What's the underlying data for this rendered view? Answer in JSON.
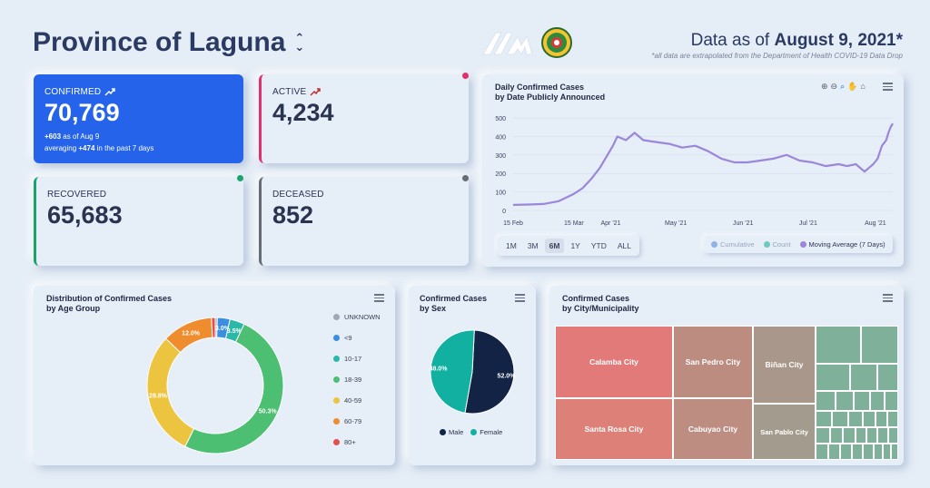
{
  "header": {
    "title": "Province of Laguna",
    "data_as_of_prefix": "Data as of ",
    "data_as_of_date": "August 9, 2021*",
    "note": "*all data are extrapolated from the Department of Health COVID-19 Data Drop"
  },
  "kpis": {
    "confirmed": {
      "label": "Confirmed",
      "value": "70,769",
      "delta": "+603",
      "delta_text": "as of Aug 9",
      "avg_prefix": "averaging",
      "avg": "+474",
      "avg_suffix": "in the past 7 days",
      "color": "#2563eb"
    },
    "active": {
      "label": "Active",
      "value": "4,234",
      "color": "#e0306e"
    },
    "recovered": {
      "label": "Recovered",
      "value": "65,683",
      "color": "#1aa36b"
    },
    "deceased": {
      "label": "Deceased",
      "value": "852",
      "color": "#666c75"
    }
  },
  "daily_chart": {
    "title_line1": "Daily Confirmed Cases",
    "title_line2": "by Date Publicly Announced",
    "toolbar": [
      "⊕",
      "⊖",
      "🔍",
      "✋",
      "⌂"
    ],
    "range_buttons": [
      "1M",
      "3M",
      "6M",
      "1Y",
      "YTD",
      "ALL"
    ],
    "active_range": "6M",
    "legend": [
      {
        "name": "Cumulative",
        "color": "#8fb3e8",
        "muted": true
      },
      {
        "name": "Count",
        "color": "#6fc9c0",
        "muted": true
      },
      {
        "name": "Moving Average (7 Days)",
        "color": "#9b86d9",
        "muted": false
      }
    ],
    "chart_data": {
      "type": "line",
      "series_name": "Moving Average (7 Days)",
      "y_ticks": [
        0,
        100,
        200,
        300,
        400,
        500
      ],
      "ylim": [
        0,
        520
      ],
      "x_ticks": [
        "15 Feb",
        "15 Mar",
        "Apr '21",
        "May '21",
        "Jun '21",
        "Jul '21",
        "Aug '21"
      ],
      "x_tick_days": [
        0,
        28,
        45,
        75,
        106,
        136,
        167
      ],
      "x": [
        0,
        7,
        14,
        21,
        28,
        32,
        36,
        40,
        44,
        46,
        48,
        52,
        56,
        60,
        66,
        72,
        78,
        84,
        90,
        96,
        102,
        108,
        114,
        120,
        126,
        132,
        138,
        144,
        150,
        154,
        158,
        162,
        164,
        166,
        168,
        170,
        172,
        173,
        174,
        175
      ],
      "y": [
        30,
        32,
        35,
        50,
        90,
        120,
        170,
        230,
        310,
        350,
        400,
        380,
        420,
        380,
        370,
        360,
        340,
        350,
        320,
        280,
        260,
        260,
        270,
        280,
        300,
        270,
        260,
        240,
        250,
        240,
        250,
        210,
        230,
        250,
        280,
        350,
        380,
        420,
        450,
        470
      ]
    }
  },
  "age_chart": {
    "title_line1": "Distribution of Confirmed Cases",
    "title_line2": "by Age Group",
    "chart_data": {
      "type": "pie",
      "categories": [
        "UNKNOWN",
        "<9",
        "10-17",
        "18-39",
        "40-59",
        "60-79",
        "80+"
      ],
      "values": [
        0.5,
        3.0,
        3.5,
        50.3,
        29.8,
        12.0,
        0.9
      ],
      "labels": [
        "",
        "3.0%",
        "3.5%",
        "50.3%",
        "29.8%",
        "12.0%",
        ""
      ],
      "colors": [
        "#a0a8b8",
        "#3b8fe0",
        "#2bb8a8",
        "#4cbf72",
        "#edc440",
        "#ee8c2e",
        "#e84d4d"
      ]
    }
  },
  "sex_chart": {
    "title_line1": "Confirmed Cases",
    "title_line2": "by Sex",
    "chart_data": {
      "type": "pie",
      "categories": [
        "Male",
        "Female"
      ],
      "values": [
        52.0,
        48.0
      ],
      "labels": [
        "52.0%",
        "48.0%"
      ],
      "colors": [
        "#132345",
        "#12b0a0"
      ]
    }
  },
  "city_chart": {
    "title_line1": "Confirmed Cases",
    "title_line2": "by City/Municipality",
    "cities": [
      {
        "name": "Calamba City",
        "color": "#e27a7a"
      },
      {
        "name": "Santa Rosa City",
        "color": "#dd8178"
      },
      {
        "name": "San Pedro City",
        "color": "#bd8c80"
      },
      {
        "name": "Cabuyao City",
        "color": "#bd8d82"
      },
      {
        "name": "Biñan City",
        "color": "#a8978a"
      },
      {
        "name": "San Pablo City",
        "color": "#a39c8e"
      }
    ],
    "small_color": "#7fb099"
  }
}
